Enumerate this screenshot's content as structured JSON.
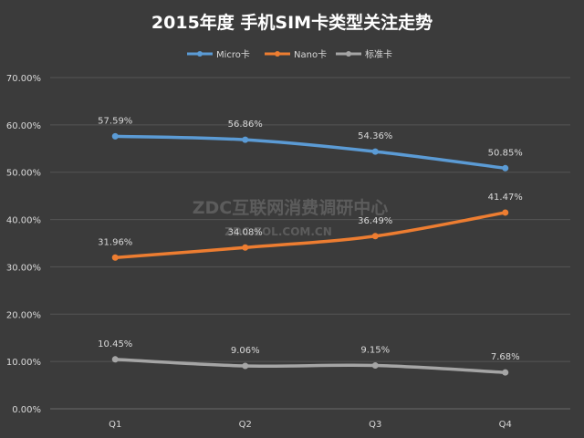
{
  "chart_data": {
    "type": "line",
    "title": "2015年度 手机SIM卡类型关注走势",
    "categories": [
      "Q1",
      "Q2",
      "Q3",
      "Q4"
    ],
    "series": [
      {
        "name": "Micro卡",
        "color": "#5b9bd5",
        "values": [
          57.59,
          56.86,
          54.36,
          50.85
        ],
        "labels": [
          "57.59%",
          "56.86%",
          "54.36%",
          "50.85%"
        ]
      },
      {
        "name": "Nano卡",
        "color": "#ed7d31",
        "values": [
          31.96,
          34.08,
          36.49,
          41.47
        ],
        "labels": [
          "31.96%",
          "34.08%",
          "36.49%",
          "41.47%"
        ]
      },
      {
        "name": "标准卡",
        "color": "#a5a5a5",
        "values": [
          10.45,
          9.06,
          9.15,
          7.68
        ],
        "labels": [
          "10.45%",
          "9.06%",
          "9.15%",
          "7.68%"
        ]
      }
    ],
    "ylim": [
      0,
      70
    ],
    "yticks": [
      "0.00%",
      "10.00%",
      "20.00%",
      "30.00%",
      "40.00%",
      "50.00%",
      "60.00%",
      "70.00%"
    ],
    "grid": true,
    "legend_position": "top"
  },
  "watermark": {
    "line1": "ZDC互联网消费调研中心",
    "line2": "ZDC.ZOL.COM.CN"
  },
  "colors": {
    "background": "#3b3b3b",
    "gridline": "#555555",
    "text": "#d9d9d9",
    "title": "#ffffff"
  }
}
